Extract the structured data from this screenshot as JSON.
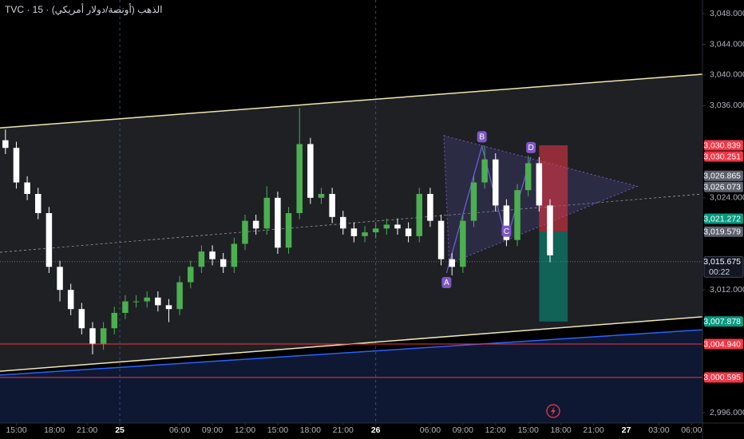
{
  "chart_data": {
    "type": "candlestick",
    "title": "TVC · 15 · الذهب (أونصة/دولار أمريكي)",
    "xlim": [
      0,
      258
    ],
    "ylim": [
      2994.65,
      3049.77
    ],
    "xticks": [
      {
        "value": 6,
        "label": "15:00"
      },
      {
        "value": 20,
        "label": "18:00"
      },
      {
        "value": 32,
        "label": "21:00"
      },
      {
        "value": 44,
        "label": "25"
      },
      {
        "value": 66,
        "label": "06:00"
      },
      {
        "value": 78,
        "label": "09:00"
      },
      {
        "value": 90,
        "label": "12:00"
      },
      {
        "value": 102,
        "label": "15:00"
      },
      {
        "value": 114,
        "label": "18:00"
      },
      {
        "value": 126,
        "label": "21:00"
      },
      {
        "value": 138,
        "label": "26"
      },
      {
        "value": 158,
        "label": "06:00"
      },
      {
        "value": 170,
        "label": "09:00"
      },
      {
        "value": 182,
        "label": "12:00"
      },
      {
        "value": 194,
        "label": "15:00"
      },
      {
        "value": 206,
        "label": "18:00"
      },
      {
        "value": 218,
        "label": "21:00"
      },
      {
        "value": 230,
        "label": "27"
      },
      {
        "value": 242,
        "label": "03:00"
      },
      {
        "value": 254,
        "label": "06:00"
      }
    ],
    "yticks": [
      {
        "value": 3048,
        "label": "3,048.000"
      },
      {
        "value": 3044,
        "label": "3,044.000"
      },
      {
        "value": 3040,
        "label": "3,040.000"
      },
      {
        "value": 3036,
        "label": "3,036.000"
      },
      {
        "value": 3024,
        "label": "3,024.000"
      },
      {
        "value": 3012,
        "label": "3,012.000"
      },
      {
        "value": 2996,
        "label": "2,996.000"
      }
    ],
    "separators": [
      44,
      138
    ],
    "up_color": "#4caf50",
    "down_color": "#ffffff",
    "candles": {
      "x": [
        2,
        6,
        10,
        14,
        18,
        22,
        26,
        30,
        34,
        38,
        42,
        46,
        50,
        54,
        58,
        62,
        66,
        70,
        74,
        78,
        82,
        86,
        90,
        94,
        98,
        102,
        106,
        110,
        114,
        118,
        122,
        126,
        130,
        134,
        138,
        142,
        146,
        150,
        154,
        158,
        162,
        166,
        170,
        174,
        178,
        182,
        186,
        190,
        194,
        198,
        202
      ],
      "open": [
        3031.5,
        3030.5,
        3026,
        3024.5,
        3022,
        3015,
        3012,
        3009.5,
        3007,
        3005,
        3007,
        3009,
        3010.5,
        3010.5,
        3011,
        3010,
        3009.5,
        3013,
        3015,
        3017,
        3016,
        3015,
        3018,
        3021,
        3020,
        3024,
        3017.5,
        3022,
        3031,
        3024,
        3024.5,
        3021.5,
        3020,
        3019,
        3019.5,
        3020,
        3020.5,
        3020,
        3019,
        3024.5,
        3021,
        3016,
        3015,
        3021,
        3026,
        3029,
        3023,
        3018.5,
        3025,
        3028.5,
        3023
      ],
      "high": [
        3032.9,
        3031.3,
        3026.8,
        3025.3,
        3022.8,
        3015.8,
        3012.8,
        3010.3,
        3007.8,
        3007.8,
        3009.8,
        3011.3,
        3011.3,
        3011.8,
        3011.8,
        3010.8,
        3013.8,
        3015.8,
        3017.8,
        3017.8,
        3016.8,
        3018.8,
        3021.8,
        3021.8,
        3025.5,
        3024.8,
        3022.8,
        3035.7,
        3031.8,
        3025.3,
        3025.3,
        3022.3,
        3020.8,
        3020.3,
        3020.8,
        3021.3,
        3021.3,
        3020.8,
        3025.3,
        3025.3,
        3021.8,
        3016.8,
        3021.8,
        3026.8,
        3030.8,
        3029.8,
        3023.8,
        3025.8,
        3029.5,
        3029.3,
        3023.8
      ],
      "low": [
        3029.7,
        3025.2,
        3023.7,
        3021.2,
        3014.2,
        3010.5,
        3008.7,
        3006.2,
        3003.6,
        3004.2,
        3006.2,
        3008.2,
        3009.7,
        3009.7,
        3009.2,
        3007.8,
        3008.7,
        3012.2,
        3014.2,
        3015.2,
        3014.2,
        3014.2,
        3017.2,
        3019.2,
        3019.2,
        3016.7,
        3016.7,
        3021.2,
        3023.2,
        3023.2,
        3020.7,
        3019.2,
        3018.2,
        3018.2,
        3018.7,
        3019.2,
        3019.2,
        3018.2,
        3018.2,
        3020.2,
        3015.2,
        3013.9,
        3014.2,
        3020.2,
        3025.2,
        3022.2,
        3017.7,
        3017.7,
        3024.2,
        3022.2,
        3015.6
      ],
      "close": [
        3030.5,
        3026,
        3024.5,
        3022,
        3015,
        3012,
        3009.5,
        3007,
        3005,
        3007,
        3009,
        3010.5,
        3010.5,
        3011,
        3010,
        3009.5,
        3013,
        3015,
        3017,
        3016,
        3015,
        3018,
        3021,
        3020,
        3024,
        3017.5,
        3022,
        3031,
        3024,
        3024.5,
        3021.5,
        3020,
        3019,
        3019.5,
        3020,
        3020.5,
        3020,
        3019,
        3024.5,
        3021,
        3016,
        3015,
        3021,
        3026,
        3029,
        3023,
        3018.5,
        3025,
        3028.5,
        3023,
        3016.5
      ]
    },
    "channel": {
      "x": [
        0,
        258
      ],
      "upper": [
        3033.1,
        3040.1
      ],
      "middle": [
        3016.9,
        3024.5
      ],
      "lower": [
        3001.4,
        3008.5
      ],
      "color": "#f0e6b4"
    },
    "trendline": {
      "x": [
        0,
        258
      ],
      "values": [
        3000.9,
        3006.8
      ],
      "color": "#2962ff"
    },
    "pattern": {
      "color": "#7e57c2",
      "triangle": {
        "x": [
          163,
          234,
          165
        ],
        "y": [
          3032.1,
          3025.5,
          3015.4
        ]
      },
      "points": [
        {
          "label": "A",
          "x": 164,
          "y": 3014.2
        },
        {
          "label": "B",
          "x": 177,
          "y": 3030.7
        },
        {
          "label": "C",
          "x": 186,
          "y": 3018.4
        },
        {
          "label": "D",
          "x": 195,
          "y": 3029.3
        }
      ]
    },
    "position": {
      "x": [
        198,
        208.5
      ],
      "stop": 3030.839,
      "entry": 3019.579,
      "target": 3007.878
    },
    "price_labels": [
      {
        "value": 3030.839,
        "label": "3,030.839",
        "color": "#f23645"
      },
      {
        "value": 3030.251,
        "label": "3,030.251",
        "color": "#f23645"
      },
      {
        "value": 3026.865,
        "label": "3,026.865",
        "color": "#5d606b"
      },
      {
        "value": 3026.073,
        "label": "3,026.073",
        "color": "#5d606b"
      },
      {
        "value": 3021.272,
        "label": "3,021.272",
        "color": "#089981"
      },
      {
        "value": 3019.579,
        "label": "3,019.579",
        "color": "#5d606b"
      },
      {
        "value": 3015.675,
        "label": "3,015.675",
        "color": "#131722",
        "countdown": "00:22",
        "line": "dotted"
      },
      {
        "value": 3007.878,
        "label": "3,007.878",
        "color": "#089981"
      },
      {
        "value": 3004.94,
        "label": "3,004.940",
        "color": "#f23645",
        "line": "solid"
      },
      {
        "value": 3000.595,
        "label": "3,000.595",
        "color": "#f23645",
        "line": "solid"
      }
    ]
  }
}
